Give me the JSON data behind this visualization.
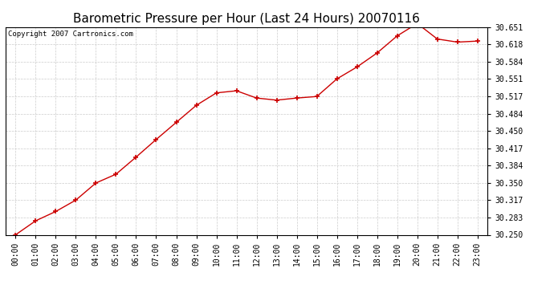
{
  "title": "Barometric Pressure per Hour (Last 24 Hours) 20070116",
  "copyright": "Copyright 2007 Cartronics.com",
  "hours": [
    0,
    1,
    2,
    3,
    4,
    5,
    6,
    7,
    8,
    9,
    10,
    11,
    12,
    13,
    14,
    15,
    16,
    17,
    18,
    19,
    20,
    21,
    22,
    23
  ],
  "x_labels": [
    "00:00",
    "01:00",
    "02:00",
    "03:00",
    "04:00",
    "05:00",
    "06:00",
    "07:00",
    "08:00",
    "09:00",
    "10:00",
    "11:00",
    "12:00",
    "13:00",
    "14:00",
    "15:00",
    "16:00",
    "17:00",
    "18:00",
    "19:00",
    "20:00",
    "21:00",
    "22:00",
    "23:00"
  ],
  "pressure": [
    30.25,
    30.277,
    30.295,
    30.317,
    30.35,
    30.367,
    30.4,
    30.434,
    30.467,
    30.5,
    30.524,
    30.528,
    30.514,
    30.51,
    30.514,
    30.517,
    30.551,
    30.574,
    30.601,
    30.634,
    30.658,
    30.628,
    30.622,
    30.624
  ],
  "y_min": 30.25,
  "y_max": 30.651,
  "y_ticks": [
    30.25,
    30.283,
    30.317,
    30.35,
    30.384,
    30.417,
    30.45,
    30.484,
    30.517,
    30.551,
    30.584,
    30.618,
    30.651
  ],
  "line_color": "#cc0000",
  "marker_color": "#cc0000",
  "bg_color": "#ffffff",
  "plot_bg_color": "#ffffff",
  "grid_color": "#cccccc",
  "title_fontsize": 11,
  "copyright_fontsize": 6.5,
  "tick_fontsize": 7,
  "ytick_fontsize": 7
}
